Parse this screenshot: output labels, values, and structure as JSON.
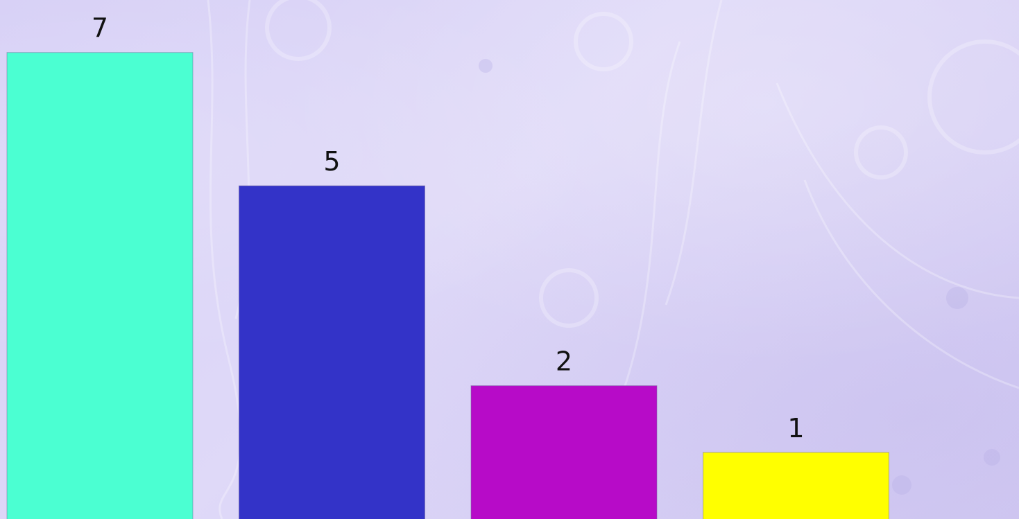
{
  "chart_data": {
    "type": "bar",
    "categories": [
      "",
      "",
      "",
      ""
    ],
    "values": [
      7,
      5,
      2,
      1
    ],
    "data_labels": [
      "7",
      "5",
      "2",
      "1"
    ],
    "colors": [
      "#4bffd2",
      "#3333c8",
      "#b70bc8",
      "#ffff00"
    ],
    "title": "",
    "xlabel": "",
    "ylabel": "",
    "ylim": [
      0,
      7.6
    ],
    "grid": false,
    "legend": "none"
  },
  "background": {
    "color": "#dcd6f7",
    "pattern": "paisley-swirl"
  }
}
